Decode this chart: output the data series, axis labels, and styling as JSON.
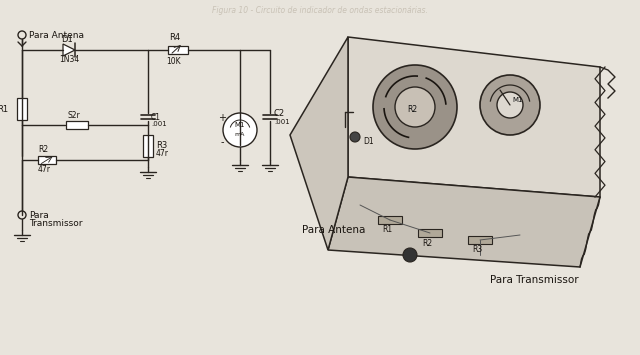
{
  "bg_color": "#e8e4dc",
  "line_color": "#2a2520",
  "text_color": "#1a1510",
  "figsize": [
    6.4,
    3.55
  ],
  "dpi": 100,
  "watermark": "Figura 10 - Circuito de indicador de ondas estacionárias.",
  "labels": {
    "para_antena": "Para Antena",
    "D1": "D1",
    "1N34": "1N34",
    "R4": "R4",
    "10K": "10K",
    "R1": "R1",
    "S2r": "S2r",
    "C1": "C1",
    "C1v": ".001",
    "R2": "R2",
    "R2v": "47r",
    "R3": "R3",
    "R3v": "47r",
    "M1": "M1",
    "mA": "mA",
    "C2": "C2",
    "C2v": ".001",
    "para_transmissor": "Para\nTransmissor",
    "para_antena_3d": "Para Antena",
    "para_transmissor_3d": "Para Transmissor"
  }
}
